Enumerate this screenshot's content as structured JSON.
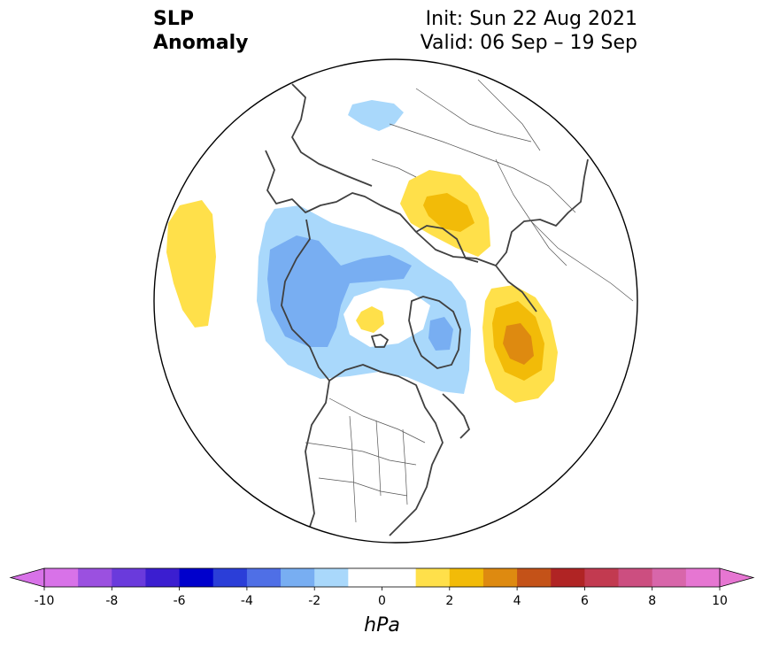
{
  "title": {
    "left_line1": "SLP",
    "left_line2": "Anomaly",
    "init": "Init: Sun 22 Aug 2021",
    "valid": "Valid: 06 Sep – 19 Sep"
  },
  "colorbar": {
    "units": "hPa",
    "ticks": [
      "-10",
      "-8",
      "-6",
      "-4",
      "-2",
      "0",
      "2",
      "4",
      "6",
      "8",
      "10"
    ],
    "levels": [
      -10,
      -9,
      -8,
      -7,
      -6,
      -5,
      -4,
      -3,
      -2,
      -1,
      1,
      2,
      3,
      4,
      5,
      6,
      7,
      8,
      9,
      10
    ],
    "colors": [
      "#d872e8",
      "#9b50e0",
      "#6a3adc",
      "#3b1ed0",
      "#0000cc",
      "#2b3ed8",
      "#4f6fe6",
      "#78aef2",
      "#a9d8fb",
      "#ffffff",
      "#ffe04a",
      "#f2bb08",
      "#de8a10",
      "#c45218",
      "#b02424",
      "#c23a50",
      "#cc4e80",
      "#d866aa",
      "#e676d2"
    ],
    "under_color": "#d872e8",
    "over_color": "#e676d2"
  },
  "anomalies": [
    {
      "name": "pacific-positive-anomaly",
      "level": 1
    },
    {
      "name": "north-asia-negative-anomaly",
      "level": -1
    },
    {
      "name": "arctic-negative-anomaly",
      "level": -1
    },
    {
      "name": "arctic-inner-negative-anomaly",
      "level": -2
    },
    {
      "name": "europe-positive-anomaly",
      "level": 1
    },
    {
      "name": "europe-positive-anomaly-core",
      "level": 2
    },
    {
      "name": "atlantic-positive-anomaly",
      "level": 1
    },
    {
      "name": "atlantic-positive-anomaly-core",
      "level": 2
    },
    {
      "name": "atlantic-positive-anomaly-center",
      "level": 3
    },
    {
      "name": "greenland-negative-anomaly-center",
      "level": -2
    }
  ]
}
